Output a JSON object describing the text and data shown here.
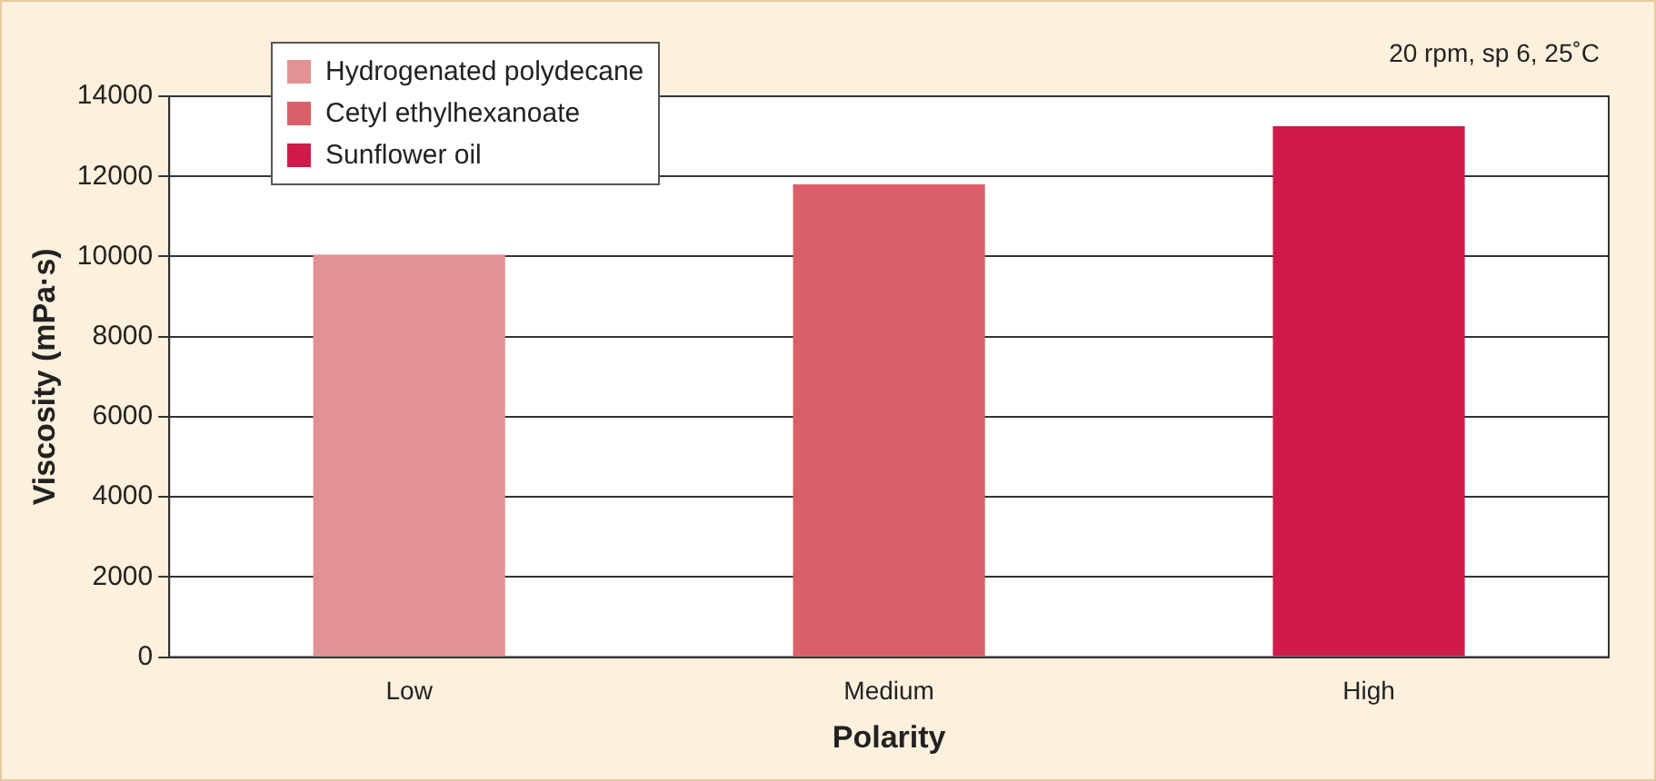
{
  "chart_data": {
    "type": "bar",
    "xlabel": "Polarity",
    "ylabel": "Viscosity (mPa·s)",
    "categories": [
      "Low",
      "Medium",
      "High"
    ],
    "series": [
      {
        "name": "Hydrogenated polydecane",
        "color": "#e39294",
        "values": [
          10050,
          null,
          null
        ]
      },
      {
        "name": "Cetyl ethylhexanoate",
        "color": "#da5f69",
        "values": [
          null,
          11800,
          null
        ]
      },
      {
        "name": "Sunflower oil",
        "color": "#cf1a4a",
        "values": [
          null,
          null,
          13250
        ]
      }
    ],
    "ylim": [
      0,
      14000
    ],
    "yticks": [
      0,
      2000,
      4000,
      6000,
      8000,
      10000,
      12000,
      14000
    ],
    "grid": "y",
    "legend": "top left",
    "annotations": [
      "20 rpm, sp 6, 25˚C"
    ]
  }
}
